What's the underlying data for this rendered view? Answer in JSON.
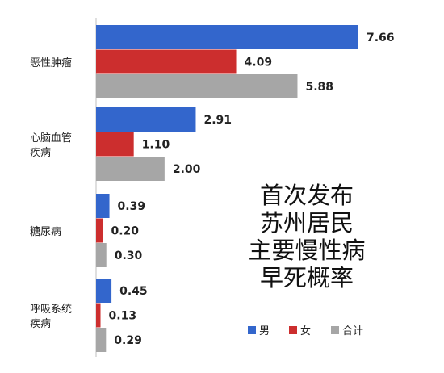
{
  "chart_data": {
    "type": "bar",
    "orientation": "horizontal",
    "title": "首次发布苏州居民主要慢性病早死概率",
    "title_lines": [
      "首次发布",
      "苏州居民",
      "主要慢性病",
      "早死概率"
    ],
    "categories": [
      {
        "lines": [
          "恶性肿瘤"
        ]
      },
      {
        "lines": [
          "心脑血管",
          "疾病"
        ]
      },
      {
        "lines": [
          "糖尿病"
        ]
      },
      {
        "lines": [
          "呼吸系统",
          "疾病"
        ]
      }
    ],
    "series": [
      {
        "name": "男",
        "color": "#3366CC",
        "values": [
          7.66,
          2.91,
          0.39,
          0.45
        ],
        "labels": [
          "7.66",
          "2.91",
          "0.39",
          "0.45"
        ]
      },
      {
        "name": "女",
        "color": "#CC2E2E",
        "values": [
          4.09,
          1.1,
          0.2,
          0.13
        ],
        "labels": [
          "4.09",
          "1.10",
          "0.20",
          "0.13"
        ]
      },
      {
        "name": "合计",
        "color": "#A6A6A6",
        "values": [
          5.88,
          2.0,
          0.3,
          0.29
        ],
        "labels": [
          "5.88",
          "2.00",
          "0.30",
          "0.29"
        ]
      }
    ],
    "xlim": [
      0,
      7.66
    ],
    "legend_position": "bottom-right",
    "grid": false
  }
}
